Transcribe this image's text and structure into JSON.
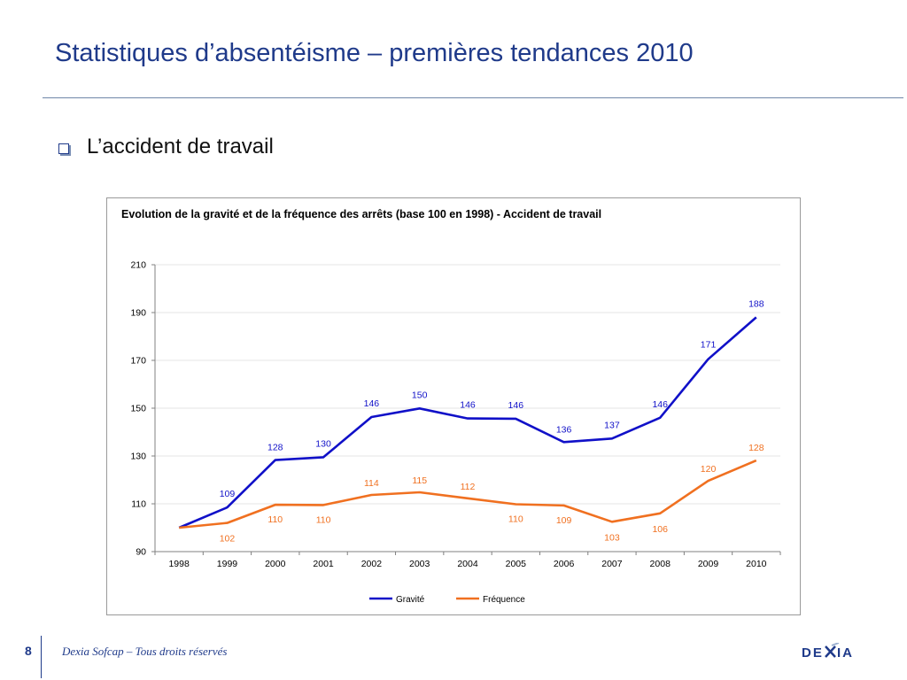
{
  "slide": {
    "title": "Statistiques d’absentéisme – premières tendances 2010",
    "bullet": "L’accident de travail"
  },
  "footer": {
    "page_number": "8",
    "text": "Dexia Sofcap – Tous droits réservés",
    "logo_text": "DEXIA"
  },
  "colors": {
    "title": "#1f3a8a",
    "gravite": "#1010c8",
    "frequence": "#f07020",
    "grid": "#e6e6e6",
    "axis": "#808080"
  },
  "chart_data": {
    "type": "line",
    "title": "Evolution de la gravité et de la fréquence des arrêts (base 100 en 1998) - Accident de travail",
    "x": [
      "1998",
      "1999",
      "2000",
      "2001",
      "2002",
      "2003",
      "2004",
      "2005",
      "2006",
      "2007",
      "2008",
      "2009",
      "2010"
    ],
    "ylim": [
      90,
      210
    ],
    "yticks": [
      90,
      110,
      130,
      150,
      170,
      190,
      210
    ],
    "grid": true,
    "legend_position": "bottom",
    "series": [
      {
        "name": "Gravité",
        "color": "#1010c8",
        "values": [
          100,
          108.5,
          128.3,
          129.5,
          146.3,
          149.9,
          145.7,
          145.6,
          135.8,
          137.3,
          146.0,
          170.5,
          188.0
        ],
        "labels": [
          "",
          "109",
          "128",
          "130",
          "146",
          "150",
          "146",
          "146",
          "136",
          "137",
          "146",
          "171",
          "188"
        ]
      },
      {
        "name": "Fréquence",
        "color": "#f07020",
        "values": [
          100,
          102.0,
          109.6,
          109.5,
          113.7,
          114.8,
          112.3,
          109.8,
          109.3,
          102.5,
          106.0,
          119.6,
          128.1
        ],
        "labels": [
          "",
          "102",
          "110",
          "110",
          "114",
          "115",
          "112",
          "110",
          "109",
          "103",
          "106",
          "120",
          "128"
        ]
      }
    ]
  }
}
